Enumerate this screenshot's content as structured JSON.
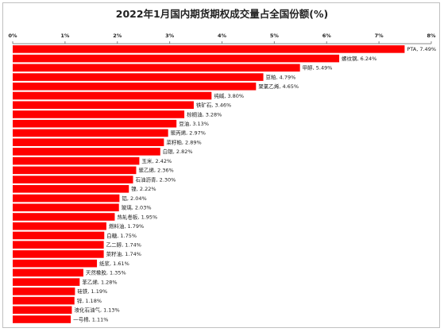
{
  "chart_data": {
    "type": "bar",
    "orientation": "horizontal",
    "title": "2022年1月国内期货期权成交量占全国份额(%)",
    "xlabel": "",
    "ylabel": "",
    "xlim": [
      0,
      8
    ],
    "x_ticks": [
      "0%",
      "1%",
      "2%",
      "3%",
      "4%",
      "5%",
      "6%",
      "7%",
      "8%"
    ],
    "axis_position": "top",
    "grid": false,
    "legend": "none",
    "bar_color": "#ff0000",
    "data_labels": [
      "PTA, 7.49%",
      "螺纹钢, 6.24%",
      "甲醇, 5.49%",
      "豆粕, 4.79%",
      "聚氯乙烯, 4.65%",
      "纯碱, 3.80%",
      "铁矿石, 3.46%",
      "棕榈油, 3.28%",
      "豆油, 3.13%",
      "聚丙烯, 2.97%",
      "菜籽粕, 2.89%",
      "白银, 2.82%",
      "玉米, 2.42%",
      "聚乙烯, 2.36%",
      "石油沥青, 2.30%",
      "镍, 2.22%",
      "铝, 2.04%",
      "玻璃, 2.03%",
      "热轧卷板, 1.95%",
      "燃料油, 1.79%",
      "白糖, 1.75%",
      "乙二醇, 1.74%",
      "菜籽油, 1.74%",
      "纸浆, 1.61%",
      "天然橡胶, 1.35%",
      "苯乙烯, 1.28%",
      "硅铁, 1.19%",
      "锌, 1.18%",
      "液化石油气, 1.13%",
      "一号棉, 1.11%"
    ],
    "categories": [
      "PTA",
      "螺纹钢",
      "甲醇",
      "豆粕",
      "聚氯乙烯",
      "纯碱",
      "铁矿石",
      "棕榈油",
      "豆油",
      "聚丙烯",
      "菜籽粕",
      "白银",
      "玉米",
      "聚乙烯",
      "石油沥青",
      "镍",
      "铝",
      "玻璃",
      "热轧卷板",
      "燃料油",
      "白糖",
      "乙二醇",
      "菜籽油",
      "纸浆",
      "天然橡胶",
      "苯乙烯",
      "硅铁",
      "锌",
      "液化石油气",
      "一号棉"
    ],
    "values": [
      7.49,
      6.24,
      5.49,
      4.79,
      4.65,
      3.8,
      3.46,
      3.28,
      3.13,
      2.97,
      2.89,
      2.82,
      2.42,
      2.36,
      2.3,
      2.22,
      2.04,
      2.03,
      1.95,
      1.79,
      1.75,
      1.74,
      1.74,
      1.61,
      1.35,
      1.28,
      1.19,
      1.18,
      1.13,
      1.11
    ]
  }
}
